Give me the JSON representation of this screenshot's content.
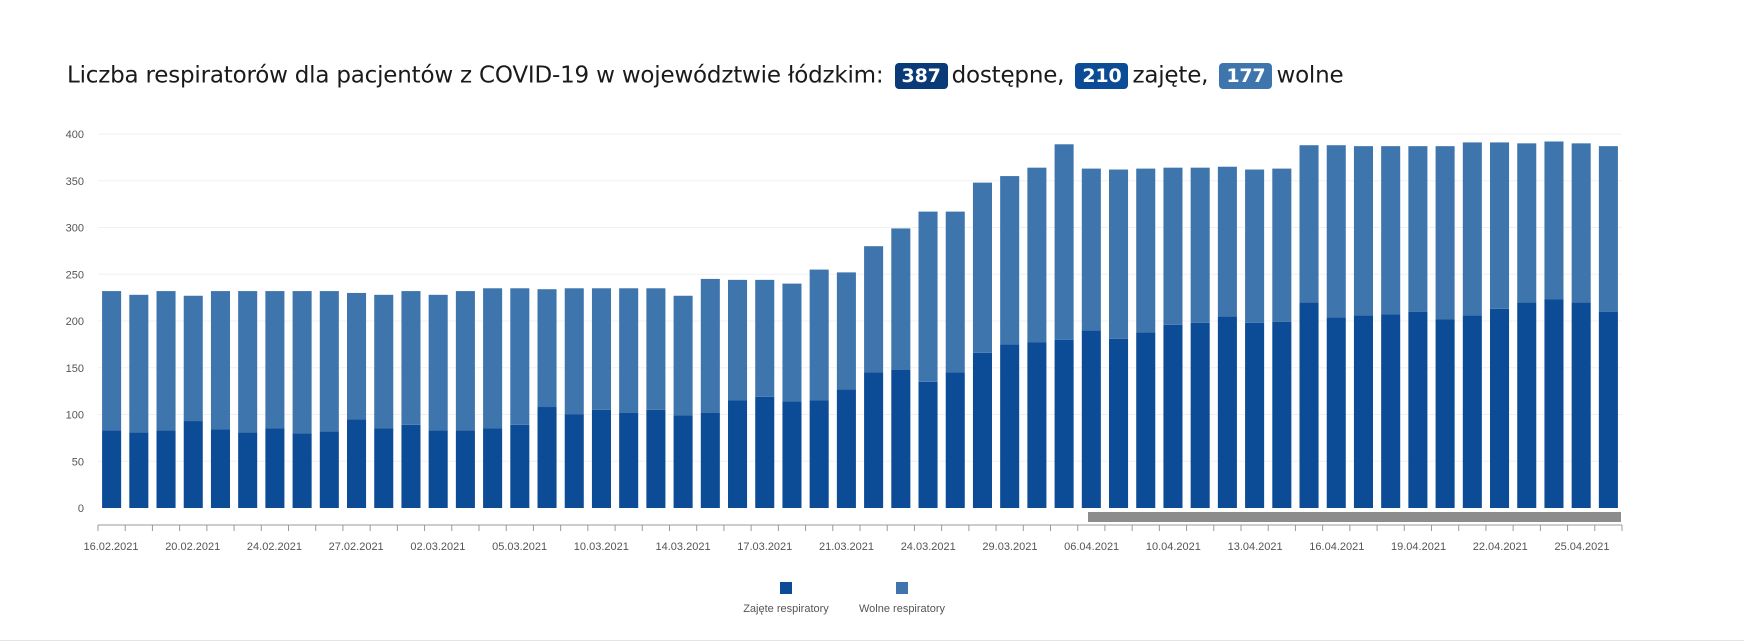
{
  "header": {
    "title_prefix": "Liczba respiratorów dla pacjentów z COVID-19 w województwie łódzkim:",
    "available_value": "387",
    "available_label": "dostępne,",
    "occupied_value": "210",
    "occupied_label": "zajęte,",
    "free_value": "177",
    "free_label": "wolne"
  },
  "colors": {
    "occupied": "#0c4c96",
    "free": "#3f75ad",
    "badge_available": "#0a3a78",
    "badge_occupied": "#0c4c96",
    "badge_free": "#3f75ad",
    "scrollbar": "#8c8c8c"
  },
  "chart_data": {
    "type": "bar",
    "stacked": true,
    "ylim": [
      0,
      400
    ],
    "yticks": [
      0,
      50,
      100,
      150,
      200,
      250,
      300,
      350,
      400
    ],
    "x_tick_labels": [
      "16.02.2021",
      "20.02.2021",
      "24.02.2021",
      "27.02.2021",
      "02.03.2021",
      "05.03.2021",
      "10.03.2021",
      "14.03.2021",
      "17.03.2021",
      "21.03.2021",
      "24.03.2021",
      "29.03.2021",
      "06.04.2021",
      "10.04.2021",
      "13.04.2021",
      "16.04.2021",
      "19.04.2021",
      "22.04.2021",
      "25.04.2021"
    ],
    "series": [
      {
        "name": "Zajęte respiratory",
        "values": [
          83,
          81,
          83,
          93,
          84,
          81,
          85,
          80,
          82,
          95,
          85,
          89,
          83,
          83,
          85,
          89,
          108,
          100,
          105,
          102,
          105,
          99,
          102,
          115,
          119,
          114,
          115,
          127,
          145,
          148,
          135,
          145,
          166,
          175,
          177,
          180,
          190,
          181,
          188,
          196,
          198,
          205,
          198,
          199,
          220,
          204,
          206,
          207,
          210,
          202,
          206,
          213,
          220,
          223,
          220,
          210
        ]
      },
      {
        "name": "Wolne respiratory",
        "values": [
          149,
          147,
          149,
          134,
          148,
          151,
          147,
          152,
          150,
          135,
          143,
          143,
          145,
          149,
          150,
          146,
          126,
          135,
          130,
          133,
          130,
          128,
          143,
          129,
          125,
          126,
          140,
          125,
          135,
          151,
          182,
          172,
          182,
          180,
          187,
          209,
          173,
          181,
          175,
          168,
          166,
          160,
          164,
          164,
          168,
          184,
          181,
          180,
          177,
          185,
          185,
          178,
          170,
          169,
          170,
          177
        ]
      }
    ],
    "legend_position": "bottom-center",
    "grid": true
  }
}
